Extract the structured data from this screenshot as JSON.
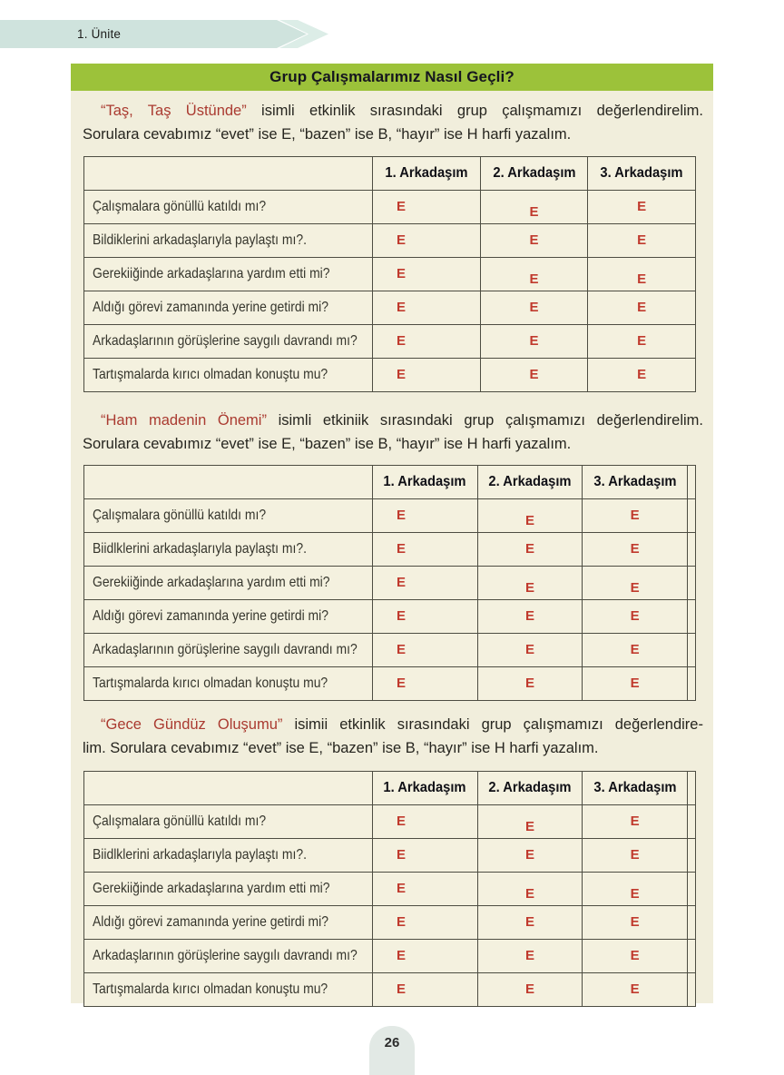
{
  "page": {
    "unit_label": "1. Ünite",
    "page_number": "26"
  },
  "header": {
    "title": "Grup Çalışmalarımız Nasıl Geçli?"
  },
  "colors": {
    "green": "#9cc23a",
    "teal": "#cfe3dd",
    "panel": "#f1eedc",
    "border": "#4d4d42",
    "ered": "#c03a2d",
    "qred": "#aa3a30",
    "tab": "#e2e9e5"
  },
  "sections": [
    {
      "intro": {
        "red": "“Taş, Taş Üstünde”",
        "line1_rest": " isimli etkinlik sırasındaki grup çalışmamızı değerlendirelim.",
        "line2": "Sorulara cevabımız “evet” ise E, “bazen” ise B, “hayır” ise H harfi yazalım."
      },
      "columns": [
        "1. Arkadaşım",
        "2. Arkadaşım",
        "3. Arkadaşım"
      ],
      "edge_column": false,
      "rows": [
        {
          "question": "Çalışmalara gönüllü katıldı mı?",
          "answers": [
            "E",
            "E",
            "E"
          ]
        },
        {
          "question": "Bildiklerini arkadaşlarıyla paylaştı mı?.",
          "answers": [
            "E",
            "E",
            "E"
          ]
        },
        {
          "question": "Gerekiiğinde arkadaşlarına yardım etti mi?",
          "answers": [
            "E",
            "E",
            "E"
          ]
        },
        {
          "question": "Aldığı görevi zamanında yerine getirdi mi?",
          "answers": [
            "E",
            "E",
            "E"
          ]
        },
        {
          "question": "Arkadaşlarının görüşlerine saygılı davrandı mı?",
          "answers": [
            "E",
            "E",
            "E"
          ]
        },
        {
          "question": "Tartışmalarda kırıcı olmadan konuştu mu?",
          "answers": [
            "E",
            "E",
            "E"
          ]
        }
      ]
    },
    {
      "intro": {
        "red": "“Ham madenin Önemi”",
        "line1_rest": " isimli etkiniik sırasındaki grup çalışmamızı değerlendirelim.",
        "line2": "Sorulara cevabımız “evet” ise E, “bazen” ise B, “hayır” ise H harfi yazalım."
      },
      "columns": [
        "1. Arkadaşım",
        "2. Arkadaşım",
        "3. Arkadaşım"
      ],
      "edge_column": true,
      "rows": [
        {
          "question": "Çalışmalara gönüllü katıldı mı?",
          "answers": [
            "E",
            "E",
            "E"
          ]
        },
        {
          "question": "Biidlklerini arkadaşlarıyla paylaştı mı?.",
          "answers": [
            "E",
            "E",
            "E"
          ]
        },
        {
          "question": "Gerekiiğinde arkadaşlarına yardım etti mi?",
          "answers": [
            "E",
            "E",
            "E"
          ]
        },
        {
          "question": "Aldığı görevi zamanında yerine getirdi mi?",
          "answers": [
            "E",
            "E",
            "E"
          ]
        },
        {
          "question": "Arkadaşlarının görüşlerine saygılı davrandı mı?",
          "answers": [
            "E",
            "E",
            "E"
          ]
        },
        {
          "question": "Tartışmalarda kırıcı olmadan konuştu mu?",
          "answers": [
            "E",
            "E",
            "E"
          ]
        }
      ]
    },
    {
      "intro": {
        "red": "“Gece Gündüz Oluşumu”",
        "line1_rest": " isimii etkinlik sırasındaki grup çalışmamızı değerlendire-",
        "line2": "lim. Sorulara cevabımız “evet” ise E, “bazen” ise B, “hayır” ise H harfi yazalım."
      },
      "columns": [
        "1. Arkadaşım",
        "2. Arkadaşım",
        "3. Arkadaşım"
      ],
      "edge_column": true,
      "rows": [
        {
          "question": "Çalışmalara gönüllü katıldı mı?",
          "answers": [
            "E",
            "E",
            "E"
          ]
        },
        {
          "question": "Biidlklerini arkadaşlarıyla paylaştı mı?.",
          "answers": [
            "E",
            "E",
            "E"
          ]
        },
        {
          "question": "Gerekiiğinde arkadaşlarına yardım etti mi?",
          "answers": [
            "E",
            "E",
            "E"
          ]
        },
        {
          "question": "Aldığı görevi zamanında yerine getirdi mi?",
          "answers": [
            "E",
            "E",
            "E"
          ]
        },
        {
          "question": "Arkadaşlarının görüşlerine saygılı davrandı mı?",
          "answers": [
            "E",
            "E",
            "E"
          ]
        },
        {
          "question": "Tartışmalarda kırıcı olmadan konuştu mu?",
          "answers": [
            "E",
            "E",
            "E"
          ]
        }
      ]
    }
  ]
}
